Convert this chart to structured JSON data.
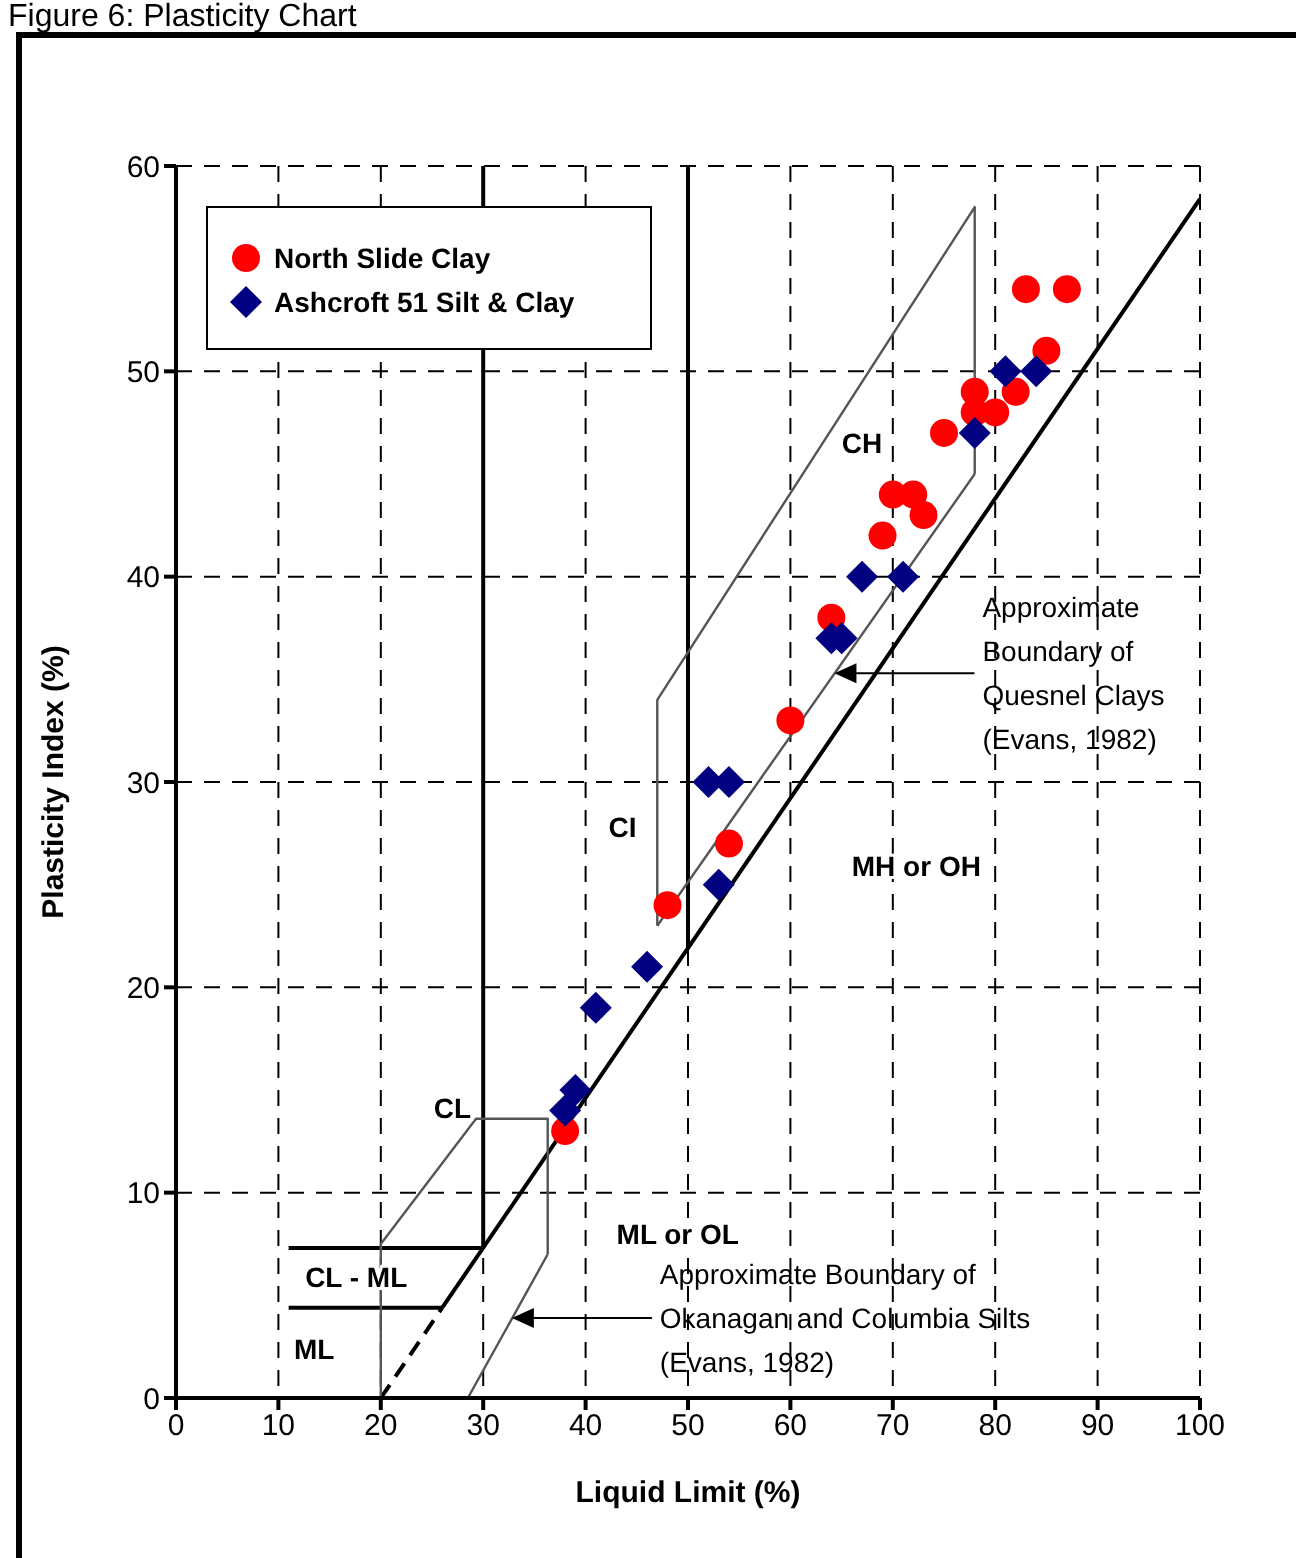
{
  "chart_data": {
    "type": "scatter",
    "title": "Figure 6: Plasticity Chart",
    "xlabel": "Liquid Limit (%)",
    "ylabel": "Plasticity Index (%)",
    "xlim": [
      0,
      100
    ],
    "ylim": [
      0,
      60
    ],
    "xticks": [
      0,
      10,
      20,
      30,
      40,
      50,
      60,
      70,
      80,
      90,
      100
    ],
    "yticks": [
      0,
      10,
      20,
      30,
      40,
      50,
      60
    ],
    "grid": true,
    "legend": "top left",
    "series": [
      {
        "name": "North Slide Clay",
        "color": "#ff0000",
        "marker": "circle",
        "x": [
          38,
          48,
          54,
          60,
          64,
          69,
          70,
          72,
          73,
          75,
          78,
          78,
          80,
          82,
          85,
          83,
          87
        ],
        "values": [
          13,
          24,
          27,
          33,
          38,
          42,
          44,
          44,
          43,
          47,
          49,
          48,
          48,
          49,
          51,
          54,
          54
        ]
      },
      {
        "name": "Ashcroft 51 Silt & Clay",
        "color": "#000080",
        "marker": "diamond",
        "x": [
          38,
          39,
          41,
          46,
          52,
          54,
          53,
          64,
          65,
          67,
          71,
          78,
          81,
          84
        ],
        "values": [
          14,
          15,
          19,
          21,
          30,
          30,
          25,
          37,
          37,
          40,
          40,
          47,
          50,
          50
        ]
      },
      {
        "type": "line",
        "color": "#000000",
        "marker": "none",
        "line_style": "dashed",
        "x": [
          20,
          26
        ],
        "values": [
          0,
          4.4
        ]
      },
      {
        "type": "line",
        "color": "#000000",
        "marker": "none",
        "line_style": "solid",
        "x": [
          26,
          100
        ],
        "values": [
          4.4,
          58.4
        ]
      },
      {
        "type": "line",
        "color": "#000000",
        "marker": "none",
        "line_style": "solid",
        "x": [
          30,
          30
        ],
        "values": [
          7.3,
          60
        ]
      },
      {
        "type": "line",
        "color": "#000000",
        "marker": "none",
        "line_style": "solid",
        "x": [
          50,
          50
        ],
        "values": [
          21.9,
          60
        ]
      },
      {
        "type": "line",
        "color": "#000000",
        "marker": "none",
        "line_style": "solid",
        "x": [
          11,
          30
        ],
        "values": [
          7.3,
          7.3
        ]
      },
      {
        "type": "line",
        "color": "#000000",
        "marker": "none",
        "line_style": "solid",
        "x": [
          11,
          26
        ],
        "values": [
          4.4,
          4.4
        ]
      },
      {
        "type": "line",
        "color": "#555555",
        "marker": "none",
        "line_style": "solid",
        "x": [
          47,
          47,
          78,
          78
        ],
        "values": [
          23,
          34,
          58,
          45
        ]
      },
      {
        "type": "line",
        "color": "#555555",
        "marker": "none",
        "line_style": "solid",
        "x": [
          47,
          78
        ],
        "values": [
          23,
          45
        ]
      },
      {
        "type": "line",
        "color": "#555555",
        "marker": "none",
        "line_style": "solid",
        "x": [
          20,
          20,
          29.3,
          36.3,
          36.3
        ],
        "values": [
          0,
          7.5,
          13.6,
          13.6,
          7
        ]
      },
      {
        "type": "line",
        "color": "#555555",
        "marker": "none",
        "line_style": "solid",
        "x": [
          20,
          28.5,
          36.3
        ],
        "values": [
          0,
          0,
          7
        ]
      }
    ],
    "annotations": [
      "CH",
      "CI",
      "MH or OH",
      "CL",
      "ML or OL",
      "CL - ML",
      "ML",
      "Approximate\nBoundary of\nQuesnel Clays\n(Evans, 1982)",
      "Approximate Boundary of\nOkanagan and Columbia Silts\n(Evans, 1982)"
    ]
  }
}
